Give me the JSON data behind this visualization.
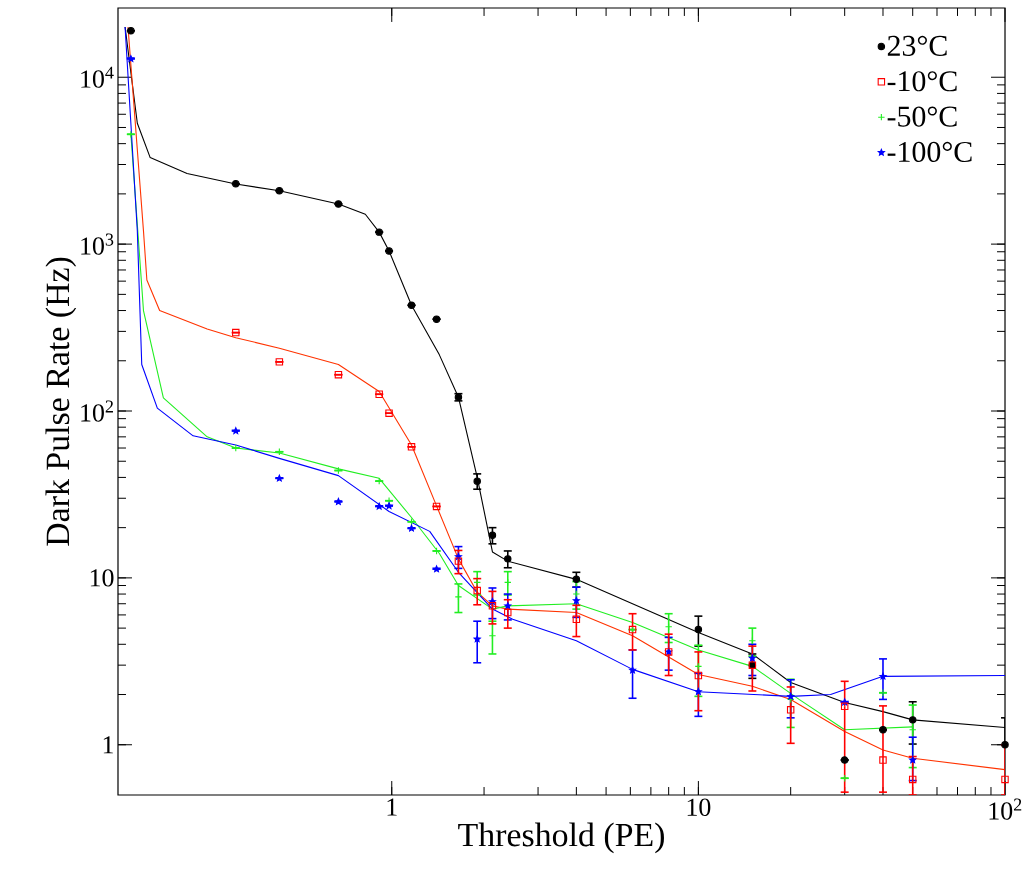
{
  "chart_data": {
    "type": "scatter",
    "xlabel": "Threshold (PE)",
    "ylabel": "Dark Pulse Rate (Hz)",
    "log": "xy",
    "legend": "top right",
    "xlim": [
      0.128,
      100
    ],
    "ylim": [
      0.5,
      26000
    ],
    "xticks": [
      1,
      10,
      {
        "value": 100,
        "label": "10$^{2}$"
      }
    ],
    "yticks": [
      1,
      10,
      {
        "value": 100,
        "label": "10$^{2}$"
      },
      {
        "value": 1000,
        "label": "10$^{3}$"
      },
      {
        "value": 10000,
        "label": "10$^{4}$"
      }
    ],
    "x": [
      0.141,
      0.31,
      0.43,
      0.67,
      0.91,
      0.98,
      1.16,
      1.4,
      1.65,
      1.9,
      2.13,
      2.39,
      4,
      6.1,
      8,
      10,
      15,
      20,
      30,
      40,
      50,
      100
    ],
    "series": [
      {
        "name": "23°C",
        "color": "#000000",
        "marker": "circle",
        "values": [
          19000,
          2300,
          2090,
          1740,
          1180,
          910,
          430,
          355,
          121,
          38,
          18,
          13,
          9.8,
          null,
          null,
          4.9,
          3.0,
          null,
          0.81,
          1.23,
          1.41,
          1.0
        ],
        "errors": [
          null,
          null,
          null,
          null,
          null,
          null,
          null,
          null,
          6,
          4,
          2,
          1.5,
          1,
          null,
          null,
          1,
          0.5,
          null,
          null,
          null,
          0.4,
          [
            1.0,
            1.45
          ]
        ]
      },
      {
        "name": "-10°C",
        "color": "#ff0000",
        "marker": "square",
        "values": [
          null,
          295,
          197,
          165,
          126,
          97,
          61,
          26.8,
          12.6,
          8.4,
          6.8,
          6.2,
          5.65,
          4.9,
          3.6,
          2.6,
          3.0,
          1.62,
          1.7,
          0.81,
          0.62,
          0.62
        ],
        "errors": [
          null,
          null,
          null,
          null,
          null,
          null,
          null,
          null,
          2,
          1.5,
          1.5,
          1.2,
          1.2,
          1.2,
          1,
          1,
          0.9,
          0.6,
          [
            0.52,
            2.4
          ],
          [
            0.52,
            1.71
          ],
          [
            0.5,
            0.85
          ],
          [
            0.5,
            1.0
          ]
        ]
      },
      {
        "name": "-50°C",
        "color": "#22ee22",
        "marker": "cross",
        "values": [
          4550,
          60,
          57,
          44,
          38,
          29,
          21.7,
          14.5,
          7.7,
          9.4,
          4.5,
          9.4,
          8.0,
          4.9,
          5.1,
          2.95,
          4.2,
          1.87,
          0.63,
          2.05,
          1.23,
          null
        ],
        "errors": [
          null,
          null,
          null,
          null,
          null,
          null,
          null,
          null,
          1.5,
          1.5,
          1,
          1.5,
          1.5,
          null,
          1,
          1,
          0.8,
          0.6,
          null,
          null,
          0.5,
          null
        ]
      },
      {
        "name": "-100°C",
        "color": "#0000ff",
        "marker": "star",
        "values": [
          12900,
          76,
          39.5,
          28.6,
          26.8,
          27,
          19.8,
          11.3,
          13.4,
          4.3,
          7.2,
          6.8,
          7.3,
          2.8,
          3.6,
          2.08,
          3.3,
          1.95,
          1.8,
          2.57,
          0.81,
          null
        ],
        "errors": [
          null,
          null,
          null,
          null,
          null,
          null,
          null,
          null,
          2,
          1.2,
          1.5,
          1.2,
          1.5,
          0.9,
          0.8,
          0.6,
          0.7,
          0.5,
          null,
          0.7,
          [
            0.61,
            1.11
          ],
          null
        ]
      },
      {
        "type": "line",
        "color": "#000000",
        "x": [
          0.135,
          0.148,
          0.163,
          0.215,
          0.31,
          0.43,
          0.67,
          0.82,
          0.91,
          0.98,
          1.16,
          1.43,
          1.65,
          1.9,
          2.13,
          2.39,
          4,
          10,
          15,
          20,
          30,
          40,
          50,
          100
        ],
        "values": [
          20000,
          5300,
          3300,
          2650,
          2290,
          2090,
          1740,
          1510,
          1180,
          910,
          430,
          217,
          121,
          40,
          14.3,
          12.6,
          9.8,
          4.7,
          3.5,
          2.36,
          1.79,
          1.58,
          1.41,
          1.27
        ]
      },
      {
        "type": "line",
        "color": "#ff3300",
        "x": [
          0.138,
          0.155,
          0.159,
          0.175,
          0.25,
          0.31,
          0.43,
          0.67,
          0.91,
          1.16,
          1.4,
          1.65,
          1.9,
          2.13,
          2.39,
          4,
          6.1,
          10,
          15,
          20,
          30,
          40,
          50,
          100
        ],
        "values": [
          20000,
          1200,
          610,
          400,
          310,
          275,
          238,
          190,
          131,
          62.6,
          27,
          13,
          8.2,
          6.8,
          6.5,
          6.2,
          4.5,
          2.64,
          2.24,
          1.87,
          1.2,
          0.93,
          0.83,
          0.71
        ]
      },
      {
        "type": "line",
        "color": "#22ee22",
        "x": [
          0.141,
          0.155,
          0.18,
          0.25,
          0.31,
          0.43,
          0.67,
          0.91,
          1.16,
          1.43,
          1.65,
          2.13,
          2.39,
          4,
          6.1,
          10,
          15,
          21.3,
          30,
          50
        ],
        "values": [
          4550,
          400,
          120,
          70,
          60,
          56,
          45,
          39.5,
          23,
          14,
          9,
          6.5,
          6.8,
          7.0,
          5.4,
          3.7,
          2.95,
          1.87,
          1.23,
          1.28
        ]
      },
      {
        "type": "line",
        "color": "#0000ff",
        "x": [
          0.135,
          0.148,
          0.153,
          0.172,
          0.225,
          0.31,
          0.43,
          0.67,
          0.98,
          1.33,
          1.65,
          2.13,
          2.48,
          4,
          6.1,
          10,
          20,
          27,
          40,
          100
        ],
        "values": [
          20000,
          1200,
          190,
          104,
          71,
          62.6,
          52,
          41,
          25,
          19,
          10.8,
          6.5,
          5.65,
          4.2,
          2.83,
          2.08,
          1.95,
          2.0,
          2.57,
          2.6
        ]
      }
    ]
  }
}
